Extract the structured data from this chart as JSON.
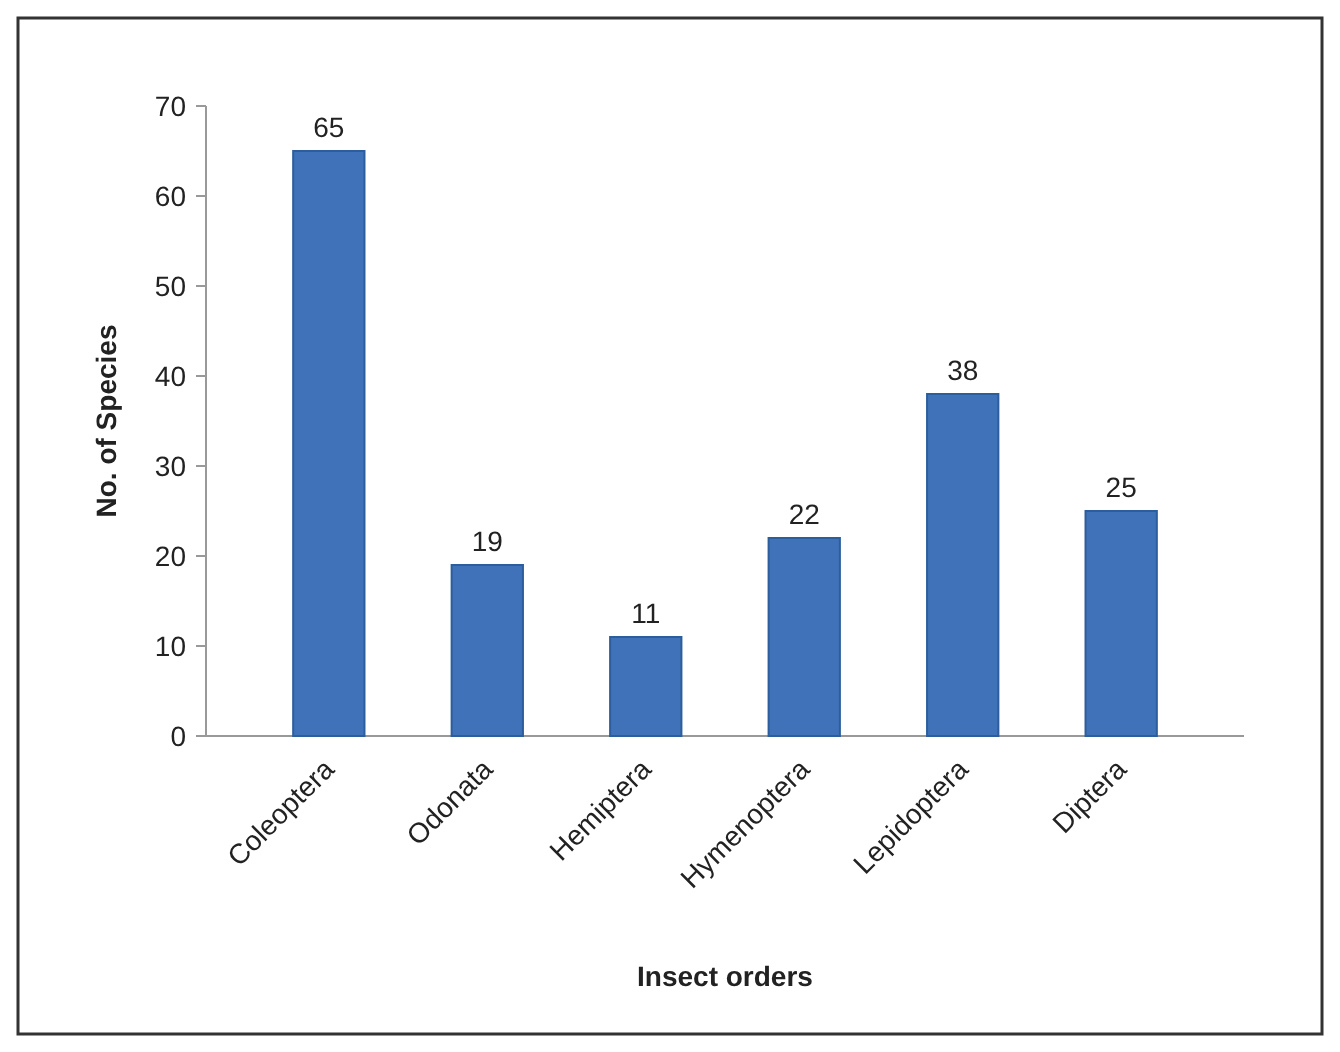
{
  "chart_data": {
    "type": "bar",
    "xlabel": "Insect orders",
    "ylabel": "No. of Species",
    "categories": [
      "Coleoptera",
      "Odonata",
      "Hemiptera",
      "Hymenoptera",
      "Lepidoptera",
      "Diptera"
    ],
    "values": [
      65,
      19,
      11,
      22,
      38,
      25
    ],
    "color": "#3f72b8",
    "ylim": [
      0,
      70
    ],
    "yticks": [
      0,
      10,
      20,
      30,
      40,
      50,
      60,
      70
    ],
    "data_labels": true,
    "grid": false
  }
}
